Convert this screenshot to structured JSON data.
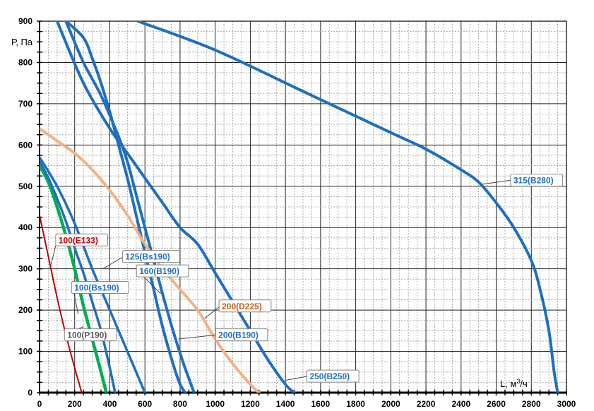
{
  "chart_data": {
    "type": "line",
    "title": "",
    "xlabel": "L, м",
    "xlabel_sup": "3",
    "xlabel_unit": "/ч",
    "ylabel": "Р, Па",
    "xlim": [
      0,
      3000
    ],
    "ylim": [
      0,
      900
    ],
    "x_ticks": [
      0,
      200,
      400,
      600,
      800,
      1000,
      1200,
      1400,
      1600,
      1800,
      2000,
      2200,
      2400,
      2600,
      2800,
      3000
    ],
    "y_ticks": [
      0,
      100,
      200,
      300,
      400,
      500,
      600,
      700,
      800,
      900
    ],
    "grid": true,
    "series": [
      {
        "name": "100(E133)",
        "color": "#c00000",
        "width": 2,
        "points": [
          [
            0,
            430
          ],
          [
            50,
            330
          ],
          [
            100,
            230
          ],
          [
            150,
            140
          ],
          [
            200,
            60
          ],
          [
            240,
            0
          ]
        ]
      },
      {
        "name": "100(P190)",
        "color": "#00b050",
        "width": 4.5,
        "points": [
          [
            0,
            550
          ],
          [
            50,
            510
          ],
          [
            100,
            450
          ],
          [
            150,
            380
          ],
          [
            200,
            300
          ],
          [
            250,
            210
          ],
          [
            300,
            130
          ],
          [
            350,
            50
          ],
          [
            380,
            0
          ]
        ]
      },
      {
        "name": "100(Bs190)",
        "color": "#1f6fc0",
        "width": 3.5,
        "points": [
          [
            0,
            560
          ],
          [
            50,
            520
          ],
          [
            100,
            470
          ],
          [
            150,
            415
          ],
          [
            200,
            350
          ],
          [
            250,
            290
          ],
          [
            300,
            220
          ],
          [
            350,
            150
          ],
          [
            400,
            60
          ],
          [
            430,
            0
          ]
        ]
      },
      {
        "name": "125(Bs190)",
        "color": "#1f6fc0",
        "width": 3.5,
        "points": [
          [
            0,
            570
          ],
          [
            100,
            500
          ],
          [
            200,
            410
          ],
          [
            300,
            300
          ],
          [
            400,
            200
          ],
          [
            500,
            100
          ],
          [
            560,
            40
          ],
          [
            600,
            0
          ]
        ]
      },
      {
        "name": "160(B190)",
        "color": "#1f6fc0",
        "width": 4,
        "points": [
          [
            150,
            900
          ],
          [
            250,
            860
          ],
          [
            300,
            810
          ],
          [
            350,
            750
          ],
          [
            400,
            680
          ],
          [
            450,
            600
          ],
          [
            500,
            520
          ],
          [
            550,
            430
          ],
          [
            600,
            340
          ],
          [
            650,
            250
          ],
          [
            700,
            160
          ],
          [
            760,
            70
          ],
          [
            800,
            20
          ],
          [
            830,
            0
          ]
        ]
      },
      {
        "name": "200(B190)",
        "color": "#1f6fc0",
        "width": 4,
        "points": [
          [
            150,
            900
          ],
          [
            250,
            800
          ],
          [
            350,
            720
          ],
          [
            450,
            620
          ],
          [
            500,
            560
          ],
          [
            550,
            480
          ],
          [
            600,
            400
          ],
          [
            650,
            320
          ],
          [
            700,
            240
          ],
          [
            760,
            150
          ],
          [
            820,
            70
          ],
          [
            880,
            0
          ]
        ]
      },
      {
        "name": "200(D225)",
        "color": "#f4b183",
        "width": 4,
        "points": [
          [
            0,
            640
          ],
          [
            100,
            610
          ],
          [
            200,
            580
          ],
          [
            300,
            540
          ],
          [
            400,
            490
          ],
          [
            500,
            430
          ],
          [
            600,
            360
          ],
          [
            700,
            300
          ],
          [
            800,
            250
          ],
          [
            900,
            200
          ],
          [
            1000,
            130
          ],
          [
            1100,
            70
          ],
          [
            1200,
            20
          ],
          [
            1250,
            0
          ]
        ]
      },
      {
        "name": "250(B250)",
        "color": "#1f6fc0",
        "width": 4,
        "points": [
          [
            100,
            900
          ],
          [
            250,
            750
          ],
          [
            400,
            640
          ],
          [
            500,
            580
          ],
          [
            600,
            520
          ],
          [
            700,
            460
          ],
          [
            800,
            400
          ],
          [
            900,
            360
          ],
          [
            1000,
            290
          ],
          [
            1100,
            220
          ],
          [
            1200,
            150
          ],
          [
            1300,
            80
          ],
          [
            1400,
            20
          ],
          [
            1450,
            0
          ]
        ]
      },
      {
        "name": "315(B280)",
        "color": "#1f6fc0",
        "width": 4,
        "points": [
          [
            560,
            900
          ],
          [
            1000,
            830
          ],
          [
            1500,
            730
          ],
          [
            2000,
            630
          ],
          [
            2200,
            590
          ],
          [
            2400,
            540
          ],
          [
            2500,
            510
          ],
          [
            2600,
            460
          ],
          [
            2700,
            400
          ],
          [
            2800,
            320
          ],
          [
            2850,
            250
          ],
          [
            2900,
            150
          ],
          [
            2930,
            50
          ],
          [
            2950,
            0
          ]
        ]
      }
    ],
    "labels": [
      {
        "text": "100(E133)",
        "x": 100,
        "y": 370,
        "color": "#c00000",
        "lx": 60,
        "ly": 300
      },
      {
        "text": "100(Bs190)",
        "x": 190,
        "y": 255,
        "color": "#1f6fc0",
        "lx": 220,
        "ly": 190
      },
      {
        "text": "100(P190)",
        "x": 150,
        "y": 140,
        "color": "#595959",
        "lx": 250,
        "ly": 160
      },
      {
        "text": "125(Bs190)",
        "x": 480,
        "y": 330,
        "color": "#1f6fc0",
        "lx": 360,
        "ly": 300
      },
      {
        "text": "160(B190)",
        "x": 560,
        "y": 295,
        "color": "#1f6fc0",
        "lx": 690,
        "ly": 240
      },
      {
        "text": "200(D225)",
        "x": 1030,
        "y": 210,
        "color": "#c55a11",
        "lx": 940,
        "ly": 180
      },
      {
        "text": "200(B190)",
        "x": 1010,
        "y": 140,
        "color": "#1f6fc0",
        "lx": 790,
        "ly": 130
      },
      {
        "text": "250(B250)",
        "x": 1530,
        "y": 40,
        "color": "#1f6fc0",
        "lx": 1400,
        "ly": 30
      },
      {
        "text": "315(B280)",
        "x": 2690,
        "y": 515,
        "color": "#1f6fc0",
        "lx": 2520,
        "ly": 505
      }
    ]
  }
}
